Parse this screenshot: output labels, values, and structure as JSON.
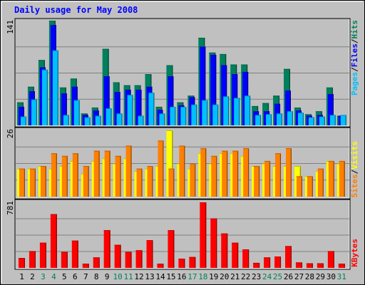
{
  "chart_data": [
    {
      "type": "bar",
      "title": "Daily usage for May 2008",
      "categories": [
        "1",
        "2",
        "3",
        "4",
        "5",
        "6",
        "7",
        "8",
        "9",
        "10",
        "11",
        "12",
        "13",
        "14",
        "15",
        "16",
        "17",
        "18",
        "19",
        "20",
        "21",
        "22",
        "23",
        "24",
        "25",
        "26",
        "27",
        "28",
        "29",
        "30",
        "31"
      ],
      "weekend_days": [
        "3",
        "4",
        "10",
        "11",
        "17",
        "18",
        "24",
        "25",
        "31"
      ],
      "ymax_label": "141",
      "ylim": [
        0,
        141
      ],
      "series": [
        {
          "name": "Hits",
          "color": "#00805c",
          "values": [
            31,
            52,
            88,
            141,
            51,
            63,
            16,
            24,
            103,
            58,
            54,
            54,
            69,
            25,
            81,
            31,
            40,
            118,
            98,
            96,
            82,
            82,
            26,
            30,
            40,
            76,
            24,
            15,
            19,
            51,
            13
          ]
        },
        {
          "name": "Files",
          "color": "#0000ff",
          "values": [
            25,
            46,
            78,
            135,
            43,
            52,
            14,
            20,
            66,
            45,
            48,
            48,
            52,
            21,
            66,
            27,
            38,
            106,
            95,
            81,
            69,
            72,
            19,
            19,
            29,
            47,
            20,
            13,
            14,
            42,
            13
          ]
        },
        {
          "name": "Pages",
          "color": "#00c0ff",
          "values": [
            12,
            35,
            75,
            101,
            14,
            34,
            11,
            13,
            23,
            16,
            41,
            13,
            44,
            16,
            25,
            25,
            28,
            34,
            28,
            39,
            37,
            40,
            14,
            15,
            16,
            19,
            17,
            11,
            12,
            14,
            14
          ]
        }
      ],
      "legend_text": [
        "Pages",
        "/",
        "Files",
        "/",
        "Hits"
      ]
    },
    {
      "type": "bar",
      "categories": [
        "1",
        "2",
        "3",
        "4",
        "5",
        "6",
        "7",
        "8",
        "9",
        "10",
        "11",
        "12",
        "13",
        "14",
        "15",
        "16",
        "17",
        "18",
        "19",
        "20",
        "21",
        "22",
        "23",
        "24",
        "25",
        "26",
        "27",
        "28",
        "29",
        "30",
        "31"
      ],
      "ymax_label": "26",
      "ylim": [
        0,
        26
      ],
      "series": [
        {
          "name": "Visits",
          "color": "#ffff00",
          "values": [
            11,
            11,
            12,
            11,
            12,
            14,
            9,
            14,
            15,
            13,
            15,
            10,
            11,
            12,
            26,
            13,
            11,
            17,
            13,
            17,
            17,
            16,
            12,
            13,
            12,
            12,
            12,
            8,
            10,
            14,
            13
          ]
        },
        {
          "name": "Sites",
          "color": "#ff8000",
          "values": [
            11,
            11,
            12,
            17,
            16,
            17,
            12,
            18,
            18,
            16,
            20,
            11,
            12,
            22,
            11,
            20,
            13,
            19,
            16,
            18,
            18,
            19,
            12,
            14,
            17,
            19,
            8,
            8,
            11,
            14,
            14
          ]
        }
      ],
      "legend_text": [
        "Sites",
        "/",
        "Visits"
      ]
    },
    {
      "type": "bar",
      "categories": [
        "1",
        "2",
        "3",
        "4",
        "5",
        "6",
        "7",
        "8",
        "9",
        "10",
        "11",
        "12",
        "13",
        "14",
        "15",
        "16",
        "17",
        "18",
        "19",
        "20",
        "21",
        "22",
        "23",
        "24",
        "25",
        "26",
        "27",
        "28",
        "29",
        "30",
        "31"
      ],
      "ymax_label": "781",
      "ylim": [
        0,
        781
      ],
      "series": [
        {
          "name": "KBytes",
          "color": "#ff0000",
          "values": [
            118,
            200,
            300,
            640,
            190,
            325,
            50,
            125,
            450,
            275,
            190,
            210,
            330,
            50,
            450,
            110,
            130,
            781,
            590,
            410,
            300,
            220,
            60,
            125,
            135,
            260,
            65,
            55,
            55,
            200,
            50
          ]
        }
      ],
      "legend_text": [
        "KBytes"
      ]
    }
  ],
  "colors": {
    "background": "#c0c0c0",
    "title": "#0000ff",
    "weekday_label": "#000000",
    "weekend_label": "#00805c",
    "grid": "#808080"
  }
}
